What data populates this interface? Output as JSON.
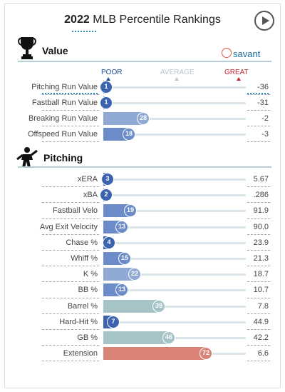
{
  "title": {
    "year": "2022",
    "rest": " MLB Percentile Rankings"
  },
  "brand": "savant",
  "icons": {
    "play": "play-button-icon",
    "value": "trophy-icon",
    "pitching": "pitcher-icon",
    "brand_logo": "baseball-logo-icon"
  },
  "scale": {
    "poor": "POOR",
    "average": "AVERAGE",
    "great": "GREAT"
  },
  "colors": {
    "poor": "#3b63b0",
    "poor_mid": "#6b8cc8",
    "avg_low": "#8fa8d4",
    "neutral": "#a6c4c7",
    "great": "#d98377",
    "track": "#dbe6ea"
  },
  "chart_data": [
    {
      "type": "bar",
      "title": "Value",
      "xlim": [
        0,
        100
      ],
      "categories": [
        "Pitching Run Value",
        "Fastball Run Value",
        "Breaking Run Value",
        "Offspeed Run Value"
      ],
      "percentiles": [
        1,
        1,
        28,
        18
      ],
      "stat_values": [
        "-36",
        "-31",
        "-2",
        "-3"
      ]
    },
    {
      "type": "bar",
      "title": "Pitching",
      "xlim": [
        0,
        100
      ],
      "categories": [
        "xERA",
        "xBA",
        "Fastball Velo",
        "Avg Exit Velocity",
        "Chase %",
        "Whiff %",
        "K %",
        "BB %",
        "Barrel %",
        "Hard-Hit %",
        "GB %",
        "Extension"
      ],
      "percentiles": [
        3,
        2,
        19,
        13,
        4,
        15,
        22,
        13,
        39,
        7,
        46,
        72
      ],
      "stat_values": [
        "5.67",
        ".286",
        "91.9",
        "90.0",
        "23.9",
        "21.3",
        "18.7",
        "10.7",
        "7.8",
        "44.9",
        "42.2",
        "6.6"
      ]
    }
  ]
}
